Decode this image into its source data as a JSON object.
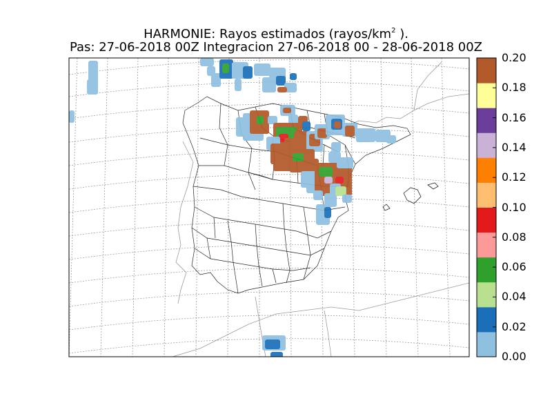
{
  "title": {
    "line1_prefix": "HARMONIE: Rayos estimados  (rayos/km",
    "line1_sup": "2",
    "line1_suffix": " ).",
    "line2": "Pas: 27-06-2018 00Z Integracion 27-06-2018 00 - 28-06-2018 00Z"
  },
  "colorbar": {
    "ticks": [
      "0.20",
      "0.18",
      "0.16",
      "0.14",
      "0.12",
      "0.10",
      "0.08",
      "0.06",
      "0.04",
      "0.02",
      "0.00"
    ],
    "colors": [
      "#8fc0e0",
      "#1a6fb8",
      "#b8e08f",
      "#2fa02c",
      "#fb9a99",
      "#e31a1c",
      "#fdbf6f",
      "#ff7f00",
      "#cab2d6",
      "#6a3d9a",
      "#ffff99",
      "#b15928"
    ]
  }
}
